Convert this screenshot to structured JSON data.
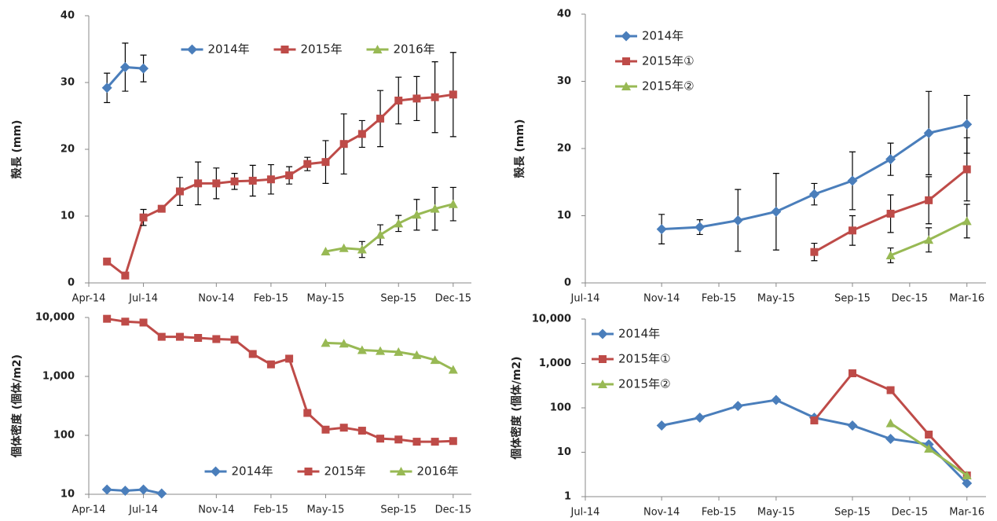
{
  "chart_data": [
    {
      "type": "line",
      "y_label": "殻長 (mm)",
      "legend": "top",
      "log_scale": false,
      "xlim": [
        "2014-04",
        "2016-01"
      ],
      "xticks": [
        {
          "value": "2014-04",
          "label": "Apr-14"
        },
        {
          "value": "2014-07",
          "label": "Jul-14"
        },
        {
          "value": "2014-11",
          "label": "Nov-14"
        },
        {
          "value": "2015-02",
          "label": "Feb-15"
        },
        {
          "value": "2015-05",
          "label": "May-15"
        },
        {
          "value": "2015-09",
          "label": "Sep-15"
        },
        {
          "value": "2015-12",
          "label": "Dec-15"
        }
      ],
      "ylim": [
        0,
        40
      ],
      "yticks": [
        0,
        10,
        20,
        30,
        40
      ],
      "x": [
        "2014-05",
        "2014-06",
        "2014-07",
        "2014-08",
        "2014-09",
        "2014-10",
        "2014-11",
        "2014-12",
        "2015-01",
        "2015-02",
        "2015-03",
        "2015-04",
        "2015-05",
        "2015-06",
        "2015-07",
        "2015-08",
        "2015-09",
        "2015-10",
        "2015-11",
        "2015-12"
      ],
      "series": [
        {
          "name": "2014年",
          "color": "#4a7ebb",
          "marker": "diamond",
          "values": [
            29.2,
            32.3,
            32.1,
            null,
            null,
            null,
            null,
            null,
            null,
            null,
            null,
            null,
            null,
            null,
            null,
            null,
            null,
            null,
            null,
            null
          ],
          "errors": [
            2.2,
            3.6,
            2.0,
            null,
            null,
            null,
            null,
            null,
            null,
            null,
            null,
            null,
            null,
            null,
            null,
            null,
            null,
            null,
            null,
            null
          ]
        },
        {
          "name": "2015年",
          "color": "#be4b48",
          "marker": "square",
          "values": [
            3.2,
            1.1,
            9.8,
            11.1,
            13.7,
            14.9,
            14.9,
            15.2,
            15.3,
            15.5,
            16.1,
            17.8,
            18.1,
            20.8,
            22.3,
            24.6,
            27.3,
            27.6,
            27.8,
            28.2
          ],
          "errors": [
            null,
            null,
            1.2,
            null,
            2.1,
            3.2,
            2.3,
            1.2,
            2.3,
            2.2,
            1.3,
            1.0,
            3.2,
            4.5,
            2.0,
            4.2,
            3.5,
            3.3,
            5.3,
            6.3
          ]
        },
        {
          "name": "2016年",
          "color": "#98b954",
          "marker": "triangle",
          "values": [
            null,
            null,
            null,
            null,
            null,
            null,
            null,
            null,
            null,
            null,
            null,
            null,
            4.7,
            5.2,
            5.0,
            7.2,
            8.9,
            10.2,
            11.1,
            11.8
          ],
          "errors": [
            null,
            null,
            null,
            null,
            null,
            null,
            null,
            null,
            null,
            null,
            null,
            null,
            null,
            null,
            1.2,
            1.5,
            1.2,
            2.3,
            3.2,
            2.5
          ]
        }
      ]
    },
    {
      "type": "line",
      "y_label": "殻長 (mm)",
      "legend": "upper left",
      "log_scale": false,
      "xlim": [
        "2014-07",
        "2016-04"
      ],
      "xticks": [
        {
          "value": "2014-07",
          "label": "Jul-14"
        },
        {
          "value": "2014-11",
          "label": "Nov-14"
        },
        {
          "value": "2015-02",
          "label": "Feb-15"
        },
        {
          "value": "2015-05",
          "label": "May-15"
        },
        {
          "value": "2015-09",
          "label": "Sep-15"
        },
        {
          "value": "2015-12",
          "label": "Dec-15"
        },
        {
          "value": "2016-03",
          "label": "Mar-16"
        }
      ],
      "ylim": [
        0,
        40
      ],
      "yticks": [
        0,
        10,
        20,
        30,
        40
      ],
      "x": [
        "2014-11",
        "2015-01",
        "2015-03",
        "2015-05",
        "2015-07",
        "2015-09",
        "2015-11",
        "2016-01",
        "2016-03"
      ],
      "series": [
        {
          "name": "2014年",
          "color": "#4a7ebb",
          "marker": "diamond",
          "values": [
            8.0,
            8.3,
            9.3,
            10.6,
            13.2,
            15.2,
            18.4,
            22.3,
            23.6
          ],
          "errors": [
            2.2,
            1.1,
            4.6,
            5.7,
            1.6,
            4.3,
            2.4,
            6.2,
            4.3
          ]
        },
        {
          "name": "2015年①",
          "color": "#be4b48",
          "marker": "square",
          "values": [
            null,
            null,
            null,
            null,
            4.6,
            7.8,
            10.3,
            12.3,
            16.9
          ],
          "errors": [
            null,
            null,
            null,
            null,
            1.3,
            2.2,
            2.8,
            3.5,
            4.7
          ]
        },
        {
          "name": "2015年②",
          "color": "#98b954",
          "marker": "triangle",
          "values": [
            null,
            null,
            null,
            null,
            null,
            null,
            4.1,
            6.4,
            9.2
          ],
          "errors": [
            null,
            null,
            null,
            null,
            null,
            null,
            1.1,
            1.8,
            2.5
          ]
        }
      ]
    },
    {
      "type": "line",
      "y_label": "個体密度 (個体/m2)",
      "legend": "bottom",
      "log_scale": true,
      "xlim": [
        "2014-04",
        "2016-01"
      ],
      "xticks": [
        {
          "value": "2014-04",
          "label": "Apr-14"
        },
        {
          "value": "2014-07",
          "label": "Jul-14"
        },
        {
          "value": "2014-11",
          "label": "Nov-14"
        },
        {
          "value": "2015-02",
          "label": "Feb-15"
        },
        {
          "value": "2015-05",
          "label": "May-15"
        },
        {
          "value": "2015-09",
          "label": "Sep-15"
        },
        {
          "value": "2015-12",
          "label": "Dec-15"
        }
      ],
      "ylim": [
        10,
        10000
      ],
      "yticks": [
        10,
        100,
        {
          "value": 1000,
          "label": "1,000"
        },
        {
          "value": 10000,
          "label": "10,000"
        }
      ],
      "x": [
        "2014-05",
        "2014-06",
        "2014-07",
        "2014-08",
        "2014-09",
        "2014-10",
        "2014-11",
        "2014-12",
        "2015-01",
        "2015-02",
        "2015-03",
        "2015-04",
        "2015-05",
        "2015-06",
        "2015-07",
        "2015-08",
        "2015-09",
        "2015-10",
        "2015-11",
        "2015-12"
      ],
      "series": [
        {
          "name": "2014年",
          "color": "#4a7ebb",
          "marker": "diamond",
          "values": [
            12,
            11.5,
            12,
            10.3,
            null,
            null,
            null,
            null,
            null,
            null,
            null,
            null,
            null,
            null,
            null,
            null,
            null,
            null,
            null,
            null
          ]
        },
        {
          "name": "2015年",
          "color": "#be4b48",
          "marker": "square",
          "values": [
            9500,
            8500,
            8200,
            4700,
            4700,
            4500,
            4300,
            4200,
            2400,
            1600,
            2000,
            240,
            125,
            135,
            120,
            88,
            85,
            78,
            78,
            80
          ]
        },
        {
          "name": "2016年",
          "color": "#98b954",
          "marker": "triangle",
          "values": [
            null,
            null,
            null,
            null,
            null,
            null,
            null,
            null,
            null,
            null,
            null,
            null,
            3700,
            3600,
            2800,
            2700,
            2600,
            2300,
            1900,
            1300
          ]
        }
      ]
    },
    {
      "type": "line",
      "y_label": "個体密度 (個体/m2)",
      "legend": "upper left",
      "log_scale": true,
      "xlim": [
        "2014-07",
        "2016-04"
      ],
      "xticks": [
        {
          "value": "2014-07",
          "label": "Jul-14"
        },
        {
          "value": "2014-11",
          "label": "Nov-14"
        },
        {
          "value": "2015-02",
          "label": "Feb-15"
        },
        {
          "value": "2015-05",
          "label": "May-15"
        },
        {
          "value": "2015-09",
          "label": "Sep-15"
        },
        {
          "value": "2015-12",
          "label": "Dec-15"
        },
        {
          "value": "2016-03",
          "label": "Mar-16"
        }
      ],
      "ylim": [
        1,
        10000
      ],
      "yticks": [
        1,
        10,
        100,
        {
          "value": 1000,
          "label": "1,000"
        },
        {
          "value": 10000,
          "label": "10,000"
        }
      ],
      "x": [
        "2014-11",
        "2015-01",
        "2015-03",
        "2015-05",
        "2015-07",
        "2015-09",
        "2015-11",
        "2016-01",
        "2016-03"
      ],
      "series": [
        {
          "name": "2014年",
          "color": "#4a7ebb",
          "marker": "diamond",
          "values": [
            40,
            60,
            110,
            150,
            60,
            40,
            20,
            15,
            2
          ]
        },
        {
          "name": "2015年①",
          "color": "#be4b48",
          "marker": "square",
          "values": [
            null,
            null,
            null,
            null,
            52,
            600,
            250,
            25,
            3
          ]
        },
        {
          "name": "2015年②",
          "color": "#98b954",
          "marker": "triangle",
          "values": [
            null,
            null,
            null,
            null,
            null,
            null,
            45,
            12,
            3
          ]
        }
      ]
    }
  ]
}
